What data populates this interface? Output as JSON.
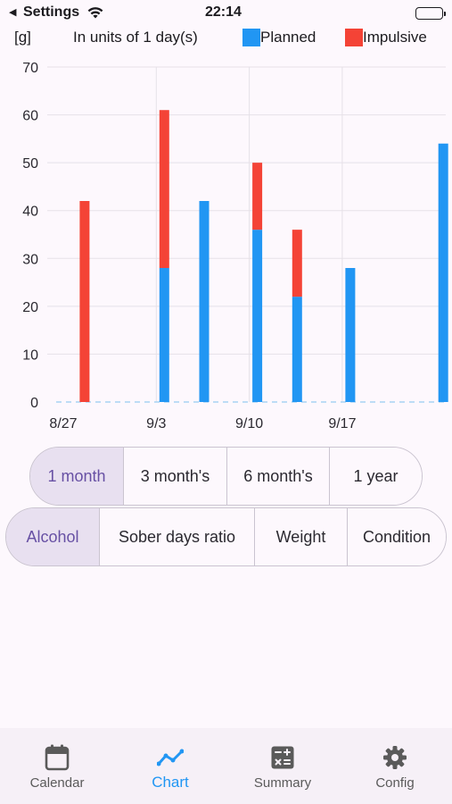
{
  "status_bar": {
    "back_label": "◀",
    "settings_label": "Settings",
    "time": "22:14"
  },
  "legend": {
    "unit_label": "[g]",
    "interval_label": "In units of 1 day(s)",
    "planned_label": "Planned",
    "impulsive_label": "Impulsive",
    "planned_color": "#2196f3",
    "impulsive_color": "#f44336"
  },
  "chart_data": {
    "type": "bar",
    "stacked": true,
    "xlabel": "",
    "ylabel": "[g]",
    "ylim": [
      0,
      70
    ],
    "yticks": [
      0,
      10,
      20,
      30,
      40,
      50,
      60,
      70
    ],
    "x_start": "8/27",
    "x_days": 30,
    "xticks": [
      {
        "day": 0,
        "label": "8/27"
      },
      {
        "day": 7,
        "label": "9/3"
      },
      {
        "day": 14,
        "label": "9/10"
      },
      {
        "day": 21,
        "label": "9/17"
      }
    ],
    "series": [
      {
        "name": "Planned",
        "color": "#2196f3",
        "points": [
          {
            "day": 7,
            "value": 28
          },
          {
            "day": 10,
            "value": 42
          },
          {
            "day": 14,
            "value": 36
          },
          {
            "day": 17,
            "value": 22
          },
          {
            "day": 21,
            "value": 28
          },
          {
            "day": 28,
            "value": 54
          }
        ]
      },
      {
        "name": "Impulsive",
        "color": "#f44336",
        "points": [
          {
            "day": 1,
            "value": 42
          },
          {
            "day": 7,
            "value": 33
          },
          {
            "day": 14,
            "value": 14
          },
          {
            "day": 17,
            "value": 14
          }
        ]
      }
    ],
    "grid": true,
    "legend_position": "top-right"
  },
  "range_tabs": {
    "options": [
      "1 month",
      "3 month's",
      "6 month's",
      "1 year"
    ],
    "selected": "1 month"
  },
  "metric_tabs": {
    "options": [
      "Alcohol",
      "Sober days ratio",
      "Weight",
      "Condition"
    ],
    "selected": "Alcohol"
  },
  "bottom_nav": {
    "items": [
      {
        "label": "Calendar",
        "icon": "calendar-icon"
      },
      {
        "label": "Chart",
        "icon": "chart-line-icon"
      },
      {
        "label": "Summary",
        "icon": "calculator-icon"
      },
      {
        "label": "Config",
        "icon": "gear-icon"
      }
    ],
    "active": "Chart",
    "active_color": "#2196f3"
  }
}
